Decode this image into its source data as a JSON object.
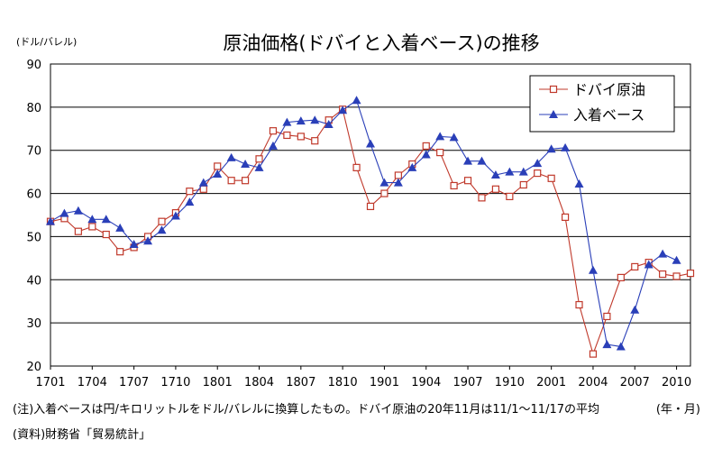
{
  "chart_data": {
    "type": "line",
    "title": "原油価格(ドバイと入着ベース)の推移",
    "ylabel": "(ドル/バレル)",
    "xlabel": "(年・月)",
    "ylim": [
      20,
      90
    ],
    "yticks": [
      20,
      30,
      40,
      50,
      60,
      70,
      80,
      90
    ],
    "xtick_labels": [
      "1701",
      "1704",
      "1707",
      "1710",
      "1801",
      "1804",
      "1807",
      "1810",
      "1901",
      "1904",
      "1907",
      "1910",
      "2001",
      "2004",
      "2007",
      "2010"
    ],
    "legend_position": "top-right",
    "grid": true,
    "series": [
      {
        "name": "ドバイ原油",
        "color": "#c0392b",
        "marker": "square-open",
        "values": [
          53.5,
          54.2,
          51.2,
          52.3,
          50.5,
          46.5,
          47.5,
          50.0,
          53.5,
          55.5,
          60.5,
          61.0,
          66.3,
          63.0,
          63.0,
          68.0,
          74.5,
          73.5,
          73.2,
          72.2,
          77.0,
          79.5,
          66.0,
          57.0,
          60.0,
          64.2,
          66.8,
          71.0,
          69.5,
          61.8,
          63.0,
          59.0,
          61.0,
          59.3,
          62.0,
          64.7,
          63.5,
          54.5,
          34.2,
          22.8,
          31.5,
          40.5,
          43.0,
          44.0,
          41.3,
          40.8,
          41.5
        ]
      },
      {
        "name": "入着ベース",
        "color": "#2a3fb8",
        "marker": "triangle-filled",
        "values": [
          53.5,
          55.4,
          56.0,
          54.0,
          54.0,
          52.0,
          48.2,
          49.0,
          51.5,
          54.8,
          58.0,
          62.5,
          64.5,
          68.3,
          66.8,
          66.0,
          71.0,
          76.5,
          76.8,
          77.0,
          76.0,
          79.3,
          81.6,
          71.5,
          62.5,
          62.5,
          66.0,
          69.0,
          73.2,
          73.0,
          67.5,
          67.5,
          64.3,
          65.0,
          65.0,
          67.0,
          70.3,
          70.6,
          62.2,
          42.2,
          25.0,
          24.5,
          33.0,
          43.5,
          46.0,
          44.5
        ]
      }
    ]
  },
  "notes": {
    "note1": "(注)入着ベースは円/キロリットルをドル/バレルに換算したもの。ドバイ原油の20年11月は11/1～11/17の平均",
    "source": "(資料)財務省「貿易統計」"
  }
}
